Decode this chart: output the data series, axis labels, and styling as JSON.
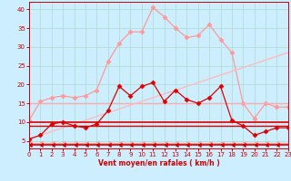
{
  "background_color": "#cceeff",
  "grid_color": "#aaddcc",
  "xlabel": "Vent moyen/en rafales ( km/h )",
  "xlabel_color": "#cc0000",
  "tick_color": "#cc0000",
  "ylim": [
    3,
    42
  ],
  "xlim": [
    0,
    23
  ],
  "yticks": [
    5,
    10,
    15,
    20,
    25,
    30,
    35,
    40
  ],
  "xticks": [
    0,
    1,
    2,
    3,
    4,
    5,
    6,
    7,
    8,
    9,
    10,
    11,
    12,
    13,
    14,
    15,
    16,
    17,
    18,
    19,
    20,
    21,
    22,
    23
  ],
  "line_light_pink_upper": {
    "x": [
      0,
      1,
      2,
      3,
      4,
      5,
      6,
      7,
      8,
      9,
      10,
      11,
      12,
      13,
      14,
      15,
      16,
      17,
      18,
      19,
      20,
      21,
      22,
      23
    ],
    "y": [
      10.5,
      15.5,
      16.5,
      17,
      16.5,
      17,
      18.5,
      26,
      31,
      34,
      34,
      40.5,
      38,
      35,
      32.5,
      33,
      36,
      32,
      28.5,
      15,
      11,
      15,
      14,
      14
    ],
    "color": "#ff9999",
    "lw": 0.9,
    "marker": "D",
    "ms": 2.5
  },
  "line_light_pink_flat": {
    "x": [
      0,
      23
    ],
    "y": [
      15,
      15
    ],
    "color": "#ffaaaa",
    "lw": 1.0
  },
  "line_light_pink_lower": {
    "x": [
      0,
      1,
      2,
      3,
      4,
      5,
      6,
      7,
      8,
      9,
      10,
      11,
      12,
      13,
      14,
      15,
      16,
      17,
      18,
      19,
      20,
      21,
      22,
      23
    ],
    "y": [
      4.5,
      4.5,
      4.5,
      4.5,
      4.5,
      4.5,
      4.5,
      4.5,
      4.5,
      4.5,
      4.5,
      4.5,
      4.5,
      4.5,
      4.5,
      4.5,
      4.5,
      4.5,
      4.5,
      4.5,
      4.5,
      4.5,
      4.5,
      4.5
    ],
    "color": "#ff9999",
    "lw": 0.8,
    "marker": 4,
    "ms": 3
  },
  "line_pink_trend": {
    "x": [
      0,
      23
    ],
    "y": [
      5.5,
      28.5
    ],
    "color": "#ffbbbb",
    "lw": 1.0
  },
  "line_red_upper": {
    "x": [
      0,
      1,
      2,
      3,
      4,
      5,
      6,
      7,
      8,
      9,
      10,
      11,
      12,
      13,
      14,
      15,
      16,
      17,
      18,
      19,
      20,
      21,
      22,
      23
    ],
    "y": [
      5.5,
      6.5,
      9.5,
      10,
      9,
      8.5,
      9.5,
      13,
      19.5,
      17,
      19.5,
      20.5,
      15.5,
      18.5,
      16,
      15,
      16.5,
      19.5,
      10.5,
      9,
      6.5,
      7.5,
      8.5,
      8.5
    ],
    "color": "#dd0000",
    "lw": 0.9,
    "marker": "D",
    "ms": 2.5
  },
  "line_red_flat1": {
    "x": [
      0,
      23
    ],
    "y": [
      10,
      10
    ],
    "color": "#dd0000",
    "lw": 1.2
  },
  "line_red_flat2": {
    "x": [
      0,
      10
    ],
    "y": [
      9,
      9
    ],
    "color": "#dd0000",
    "lw": 1.0
  },
  "line_red_flat3": {
    "x": [
      10,
      23
    ],
    "y": [
      9,
      9
    ],
    "color": "#dd0000",
    "lw": 1.0
  },
  "line_red_lower": {
    "x": [
      0,
      1,
      2,
      3,
      4,
      5,
      6,
      7,
      8,
      9,
      10,
      11,
      12,
      13,
      14,
      15,
      16,
      17,
      18,
      19,
      20,
      21,
      22,
      23
    ],
    "y": [
      4,
      4,
      4,
      4,
      4,
      4,
      4,
      4,
      4,
      4,
      4,
      4,
      4,
      4,
      4,
      4,
      4,
      4,
      4,
      4,
      4,
      4,
      4,
      4
    ],
    "color": "#cc0000",
    "lw": 1.2,
    "marker": 4,
    "ms": 3
  }
}
